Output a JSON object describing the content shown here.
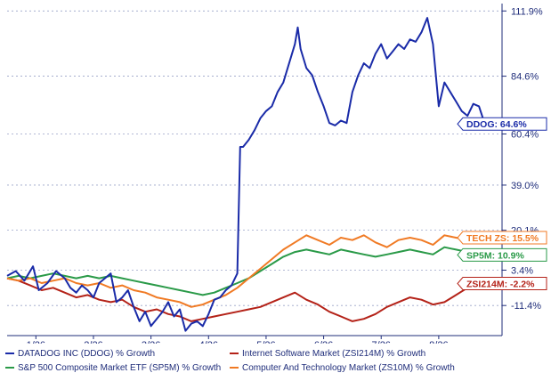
{
  "chart_data": {
    "type": "line",
    "x_ticks": [
      "1/26",
      "2/26",
      "3/26",
      "4/26",
      "5/26",
      "6/26",
      "7/26",
      "8/26"
    ],
    "y_ticks": [
      "111.9%",
      "84.6%",
      "60.4%",
      "39.0%",
      "20.1%",
      "3.4%",
      "-11.4%"
    ],
    "y_tick_values": [
      111.9,
      84.6,
      60.4,
      39.0,
      20.1,
      3.4,
      -11.4
    ],
    "grid": true,
    "ylim": [
      -24,
      115
    ],
    "x_range": [
      0,
      8.6
    ],
    "series": [
      {
        "name": "DATADOG INC (DDOG) % Growth",
        "color": "#1a2ba8",
        "end_label": "DDOG: 64.6%",
        "x": [
          0,
          0.15,
          0.3,
          0.45,
          0.55,
          0.7,
          0.85,
          1.0,
          1.1,
          1.2,
          1.3,
          1.4,
          1.5,
          1.6,
          1.7,
          1.8,
          1.9,
          2.0,
          2.1,
          2.2,
          2.3,
          2.4,
          2.5,
          2.6,
          2.7,
          2.8,
          2.9,
          3.0,
          3.1,
          3.2,
          3.3,
          3.4,
          3.5,
          3.6,
          3.7,
          3.8,
          3.9,
          4.0,
          4.05,
          4.1,
          4.2,
          4.3,
          4.4,
          4.5,
          4.6,
          4.7,
          4.8,
          4.9,
          5.0,
          5.05,
          5.1,
          5.2,
          5.3,
          5.4,
          5.5,
          5.6,
          5.7,
          5.8,
          5.9,
          6.0,
          6.1,
          6.2,
          6.3,
          6.4,
          6.5,
          6.6,
          6.7,
          6.8,
          6.9,
          7.0,
          7.1,
          7.2,
          7.3,
          7.4,
          7.5,
          7.6,
          7.7,
          7.8,
          7.9,
          8.0,
          8.1,
          8.2,
          8.3
        ],
        "values": [
          1,
          3,
          -1,
          5,
          -5,
          -2,
          3,
          0,
          -4,
          -6,
          -3,
          -5,
          -8,
          -2,
          0,
          2,
          -10,
          -8,
          -5,
          -12,
          -18,
          -14,
          -20,
          -17,
          -14,
          -10,
          -16,
          -13,
          -22,
          -19,
          -18,
          -20,
          -15,
          -9,
          -8,
          -5,
          -3,
          2,
          55,
          55,
          58,
          62,
          67,
          70,
          72,
          78,
          82,
          90,
          98,
          105,
          96,
          88,
          85,
          78,
          72,
          65,
          64,
          66,
          65,
          78,
          85,
          90,
          88,
          94,
          98,
          92,
          95,
          98,
          96,
          100,
          99,
          103,
          109,
          98,
          72,
          82,
          78,
          74,
          70,
          68,
          73,
          72,
          64.6
        ]
      },
      {
        "name": "Internet Software Market (ZSI214M) % Growth",
        "color": "#b42218",
        "end_label": "ZSI214M: -2.2%",
        "x": [
          0,
          0.2,
          0.4,
          0.6,
          0.8,
          1.0,
          1.2,
          1.4,
          1.6,
          1.8,
          2.0,
          2.2,
          2.4,
          2.6,
          2.8,
          3.0,
          3.2,
          3.4,
          3.6,
          3.8,
          4.0,
          4.2,
          4.4,
          4.6,
          4.8,
          5.0,
          5.2,
          5.4,
          5.6,
          5.8,
          6.0,
          6.2,
          6.4,
          6.6,
          6.8,
          7.0,
          7.2,
          7.4,
          7.6,
          7.8,
          8.0,
          8.2,
          8.3
        ],
        "values": [
          0,
          -1,
          -3,
          -5,
          -4,
          -6,
          -8,
          -7,
          -9,
          -10,
          -9,
          -12,
          -14,
          -13,
          -15,
          -16,
          -18,
          -17,
          -16,
          -15,
          -14,
          -13,
          -12,
          -10,
          -8,
          -6,
          -9,
          -11,
          -14,
          -16,
          -18,
          -17,
          -15,
          -12,
          -10,
          -8,
          -9,
          -11,
          -10,
          -7,
          -4,
          -3,
          -2.2
        ]
      },
      {
        "name": "S&P 500 Composite Market ETF (SP5M) % Growth",
        "color": "#2a9a48",
        "end_label": "SP5M: 10.9%",
        "x": [
          0,
          0.2,
          0.4,
          0.6,
          0.8,
          1.0,
          1.2,
          1.4,
          1.6,
          1.8,
          2.0,
          2.2,
          2.4,
          2.6,
          2.8,
          3.0,
          3.2,
          3.4,
          3.6,
          3.8,
          4.0,
          4.2,
          4.4,
          4.6,
          4.8,
          5.0,
          5.2,
          5.4,
          5.6,
          5.8,
          6.0,
          6.2,
          6.4,
          6.6,
          6.8,
          7.0,
          7.2,
          7.4,
          7.6,
          7.8,
          8.0,
          8.2,
          8.3
        ],
        "values": [
          0,
          1,
          0,
          1,
          2,
          1,
          0,
          1,
          0,
          1,
          0,
          -1,
          -2,
          -3,
          -4,
          -5,
          -6,
          -7,
          -6,
          -4,
          -2,
          0,
          3,
          6,
          9,
          11,
          12,
          11,
          10,
          12,
          11,
          10,
          9,
          10,
          11,
          12,
          11,
          10,
          13,
          12,
          11,
          12,
          10.9
        ]
      },
      {
        "name": "Computer And Technology Market (ZS10M) % Growth",
        "color": "#f07a24",
        "end_label": "TECH ZS: 15.5%",
        "x": [
          0,
          0.2,
          0.4,
          0.6,
          0.8,
          1.0,
          1.2,
          1.4,
          1.6,
          1.8,
          2.0,
          2.2,
          2.4,
          2.6,
          2.8,
          3.0,
          3.2,
          3.4,
          3.6,
          3.8,
          4.0,
          4.2,
          4.4,
          4.6,
          4.8,
          5.0,
          5.2,
          5.4,
          5.6,
          5.8,
          6.0,
          6.2,
          6.4,
          6.6,
          6.8,
          7.0,
          7.2,
          7.4,
          7.6,
          7.8,
          8.0,
          8.2,
          8.3
        ],
        "values": [
          0,
          -1,
          0,
          -2,
          -1,
          0,
          -2,
          -3,
          -2,
          -4,
          -3,
          -5,
          -6,
          -8,
          -9,
          -10,
          -12,
          -11,
          -9,
          -7,
          -4,
          0,
          4,
          8,
          12,
          15,
          18,
          16,
          14,
          17,
          16,
          18,
          15,
          13,
          16,
          17,
          16,
          14,
          18,
          17,
          16,
          17,
          15.5
        ]
      }
    ],
    "legend_position": "bottom"
  }
}
